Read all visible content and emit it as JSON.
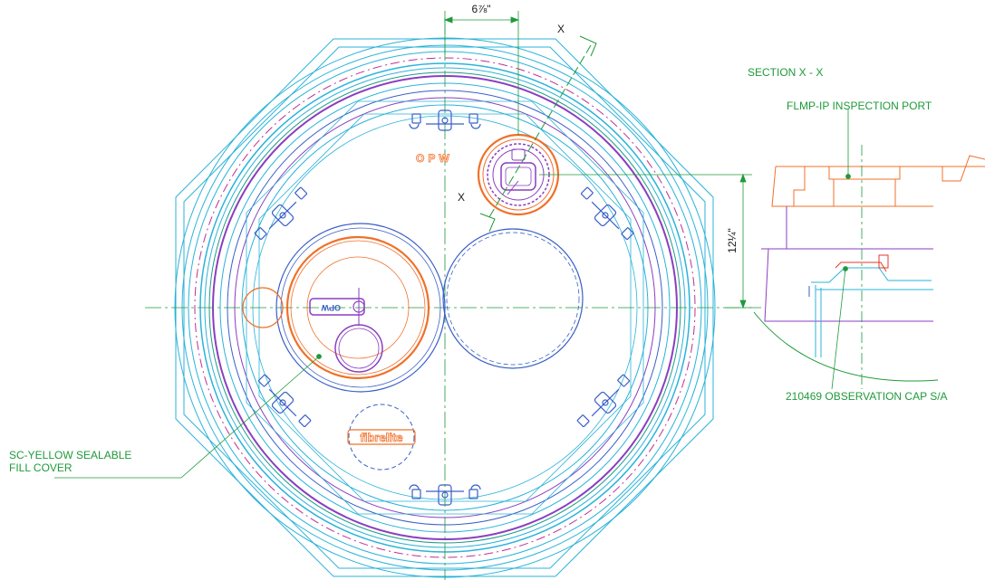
{
  "labels": {
    "section": "SECTION X - X",
    "inspection_port": "FLMP-IP  INSPECTION PORT",
    "observation_cap": "210469  OBSERVATION CAP S/A",
    "fill_cover_line1": "SC-YELLOW SEALABLE",
    "fill_cover_line2": "FILL COVER"
  },
  "dimensions": {
    "horizontal": "6⅞\"",
    "vertical": "12¼\""
  },
  "section_markers": {
    "top": "X",
    "bottom": "X"
  },
  "logos": {
    "opw_top": "OPW",
    "opw_left": "OPW",
    "fibrelite": "fibrelite"
  },
  "colors": {
    "outline_cyan": "#2bb3d9",
    "outline_blue": "#3a5fc8",
    "outline_purple": "#8a3fc0",
    "outline_magenta": "#c0308f",
    "accent_orange": "#f0702a",
    "label_green": "#1f9a3a",
    "dimension_green": "#1f9a3a"
  }
}
